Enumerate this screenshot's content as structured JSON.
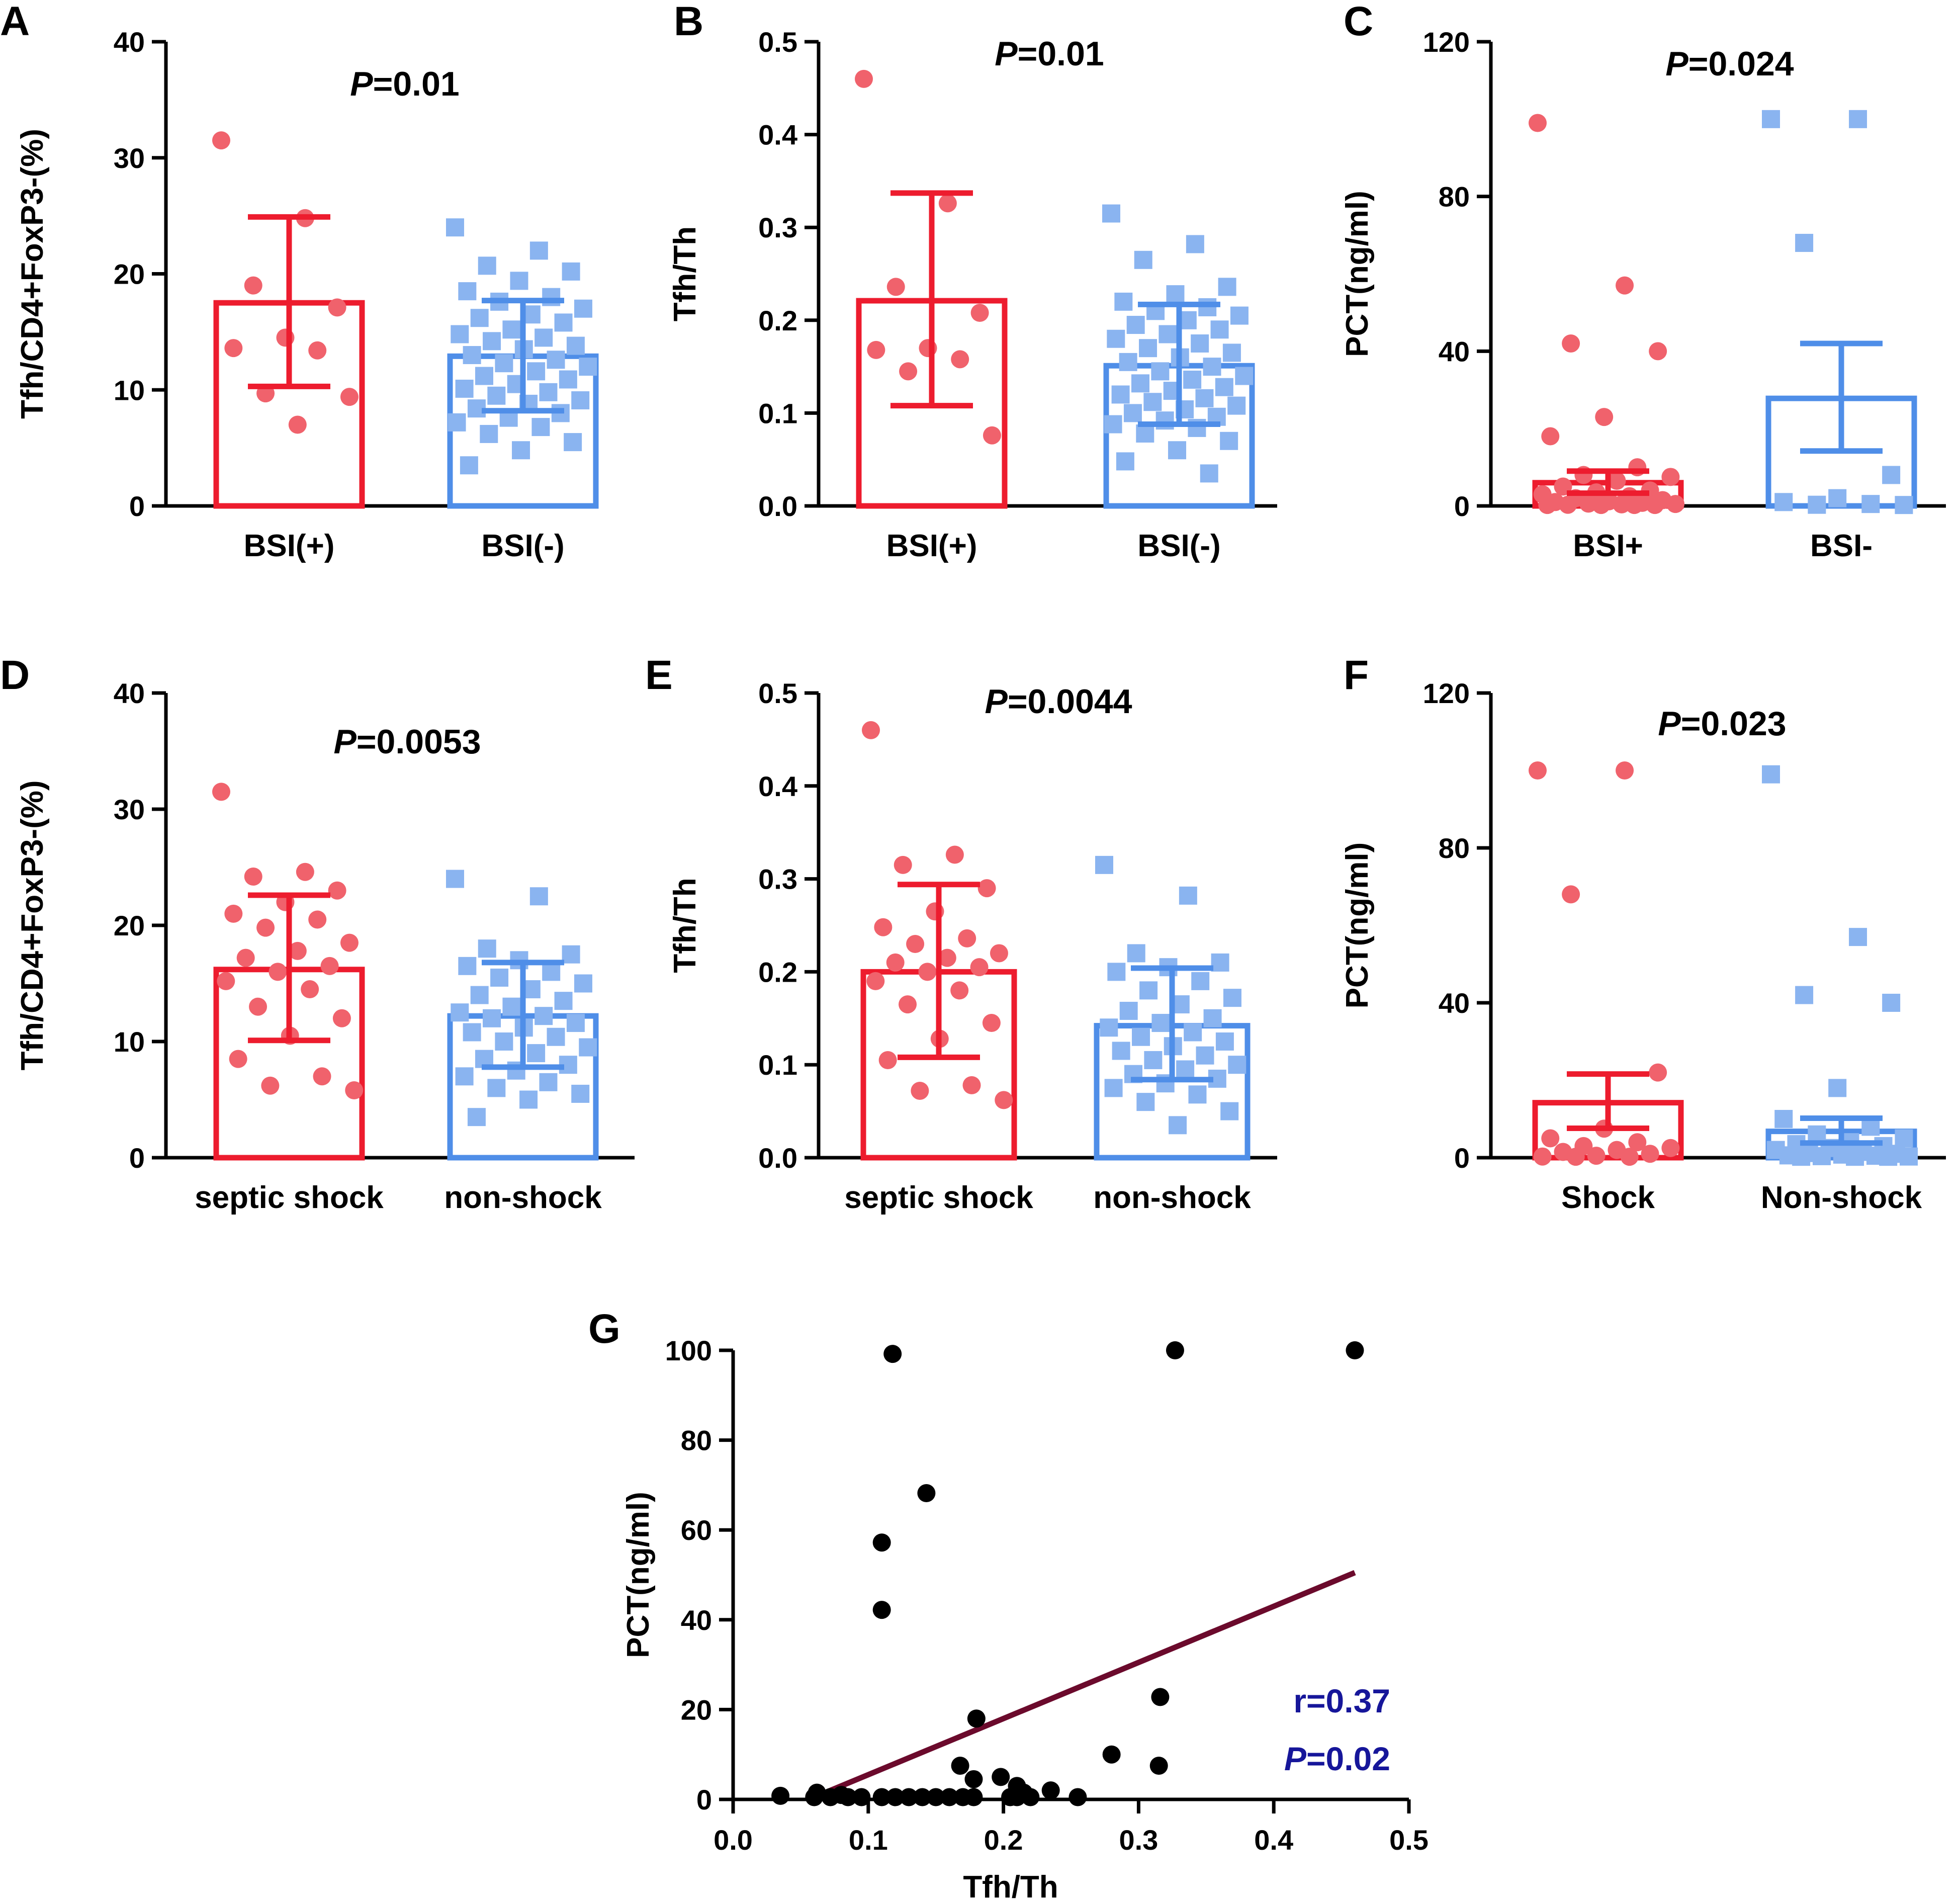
{
  "colors": {
    "red_bar": "#ed1c2e",
    "red_point": "#f0626c",
    "blue_bar": "#4f8ee8",
    "blue_point": "#8ab4f0",
    "black": "#000000",
    "regression_line": "#6b0a2c",
    "stat_blue": "#16169a"
  },
  "chart_data": [
    {
      "panel": "A",
      "type": "bar",
      "ylabel": "Tfh/CD4+FoxP3-(%)",
      "ylim": [
        0,
        40
      ],
      "yticks": [
        0,
        10,
        20,
        30,
        40
      ],
      "p_prefix": "P",
      "p_value": "=0.01",
      "groups": [
        {
          "label": "BSI(+)",
          "color": "red",
          "marker": "circle",
          "mean": 17.5,
          "err_low": 10.3,
          "err_high": 24.9,
          "points": [
            31.5,
            24.8,
            19.0,
            17.1,
            14.5,
            13.6,
            13.4,
            9.7,
            9.4,
            7.0
          ]
        },
        {
          "label": "BSI(-)",
          "color": "blue",
          "marker": "square",
          "mean": 12.9,
          "err_low": 8.2,
          "err_high": 17.7,
          "points": [
            24.0,
            22.0,
            20.7,
            20.2,
            19.4,
            18.5,
            18.0,
            17.6,
            17.0,
            16.5,
            16.2,
            15.8,
            15.2,
            14.8,
            14.5,
            14.2,
            13.8,
            13.5,
            13.0,
            12.6,
            12.3,
            12.0,
            11.6,
            11.2,
            10.9,
            10.5,
            10.1,
            9.8,
            9.5,
            9.1,
            8.8,
            8.4,
            8.0,
            7.6,
            7.2,
            6.8,
            6.2,
            5.5,
            4.8,
            3.5
          ]
        }
      ]
    },
    {
      "panel": "B",
      "type": "bar",
      "ylabel": "Tfh/Th",
      "ylim": [
        0,
        0.5
      ],
      "yticks": [
        "0.0",
        "0.1",
        "0.2",
        "0.3",
        "0.4",
        "0.5"
      ],
      "p_prefix": "P",
      "p_value": "=0.01",
      "groups": [
        {
          "label": "BSI(+)",
          "color": "red",
          "marker": "circle",
          "mean": 0.221,
          "err_low": 0.108,
          "err_high": 0.337,
          "points": [
            0.46,
            0.326,
            0.236,
            0.208,
            0.17,
            0.168,
            0.158,
            0.145,
            0.076
          ]
        },
        {
          "label": "BSI(-)",
          "color": "blue",
          "marker": "square",
          "mean": 0.151,
          "err_low": 0.088,
          "err_high": 0.217,
          "points": [
            0.315,
            0.282,
            0.265,
            0.236,
            0.228,
            0.22,
            0.214,
            0.21,
            0.205,
            0.2,
            0.195,
            0.19,
            0.185,
            0.18,
            0.175,
            0.17,
            0.165,
            0.16,
            0.155,
            0.15,
            0.145,
            0.14,
            0.136,
            0.132,
            0.128,
            0.124,
            0.12,
            0.116,
            0.112,
            0.108,
            0.104,
            0.1,
            0.096,
            0.092,
            0.088,
            0.084,
            0.078,
            0.07,
            0.06,
            0.048,
            0.035
          ]
        }
      ]
    },
    {
      "panel": "C",
      "type": "bar",
      "ylabel": "PCT(ng/ml)",
      "ylim": [
        0,
        120
      ],
      "yticks": [
        0,
        40,
        80,
        120
      ],
      "p_prefix": "P",
      "p_value": "=0.024",
      "groups": [
        {
          "label": "BSI+",
          "color": "red",
          "marker": "circle",
          "mean": 6.0,
          "err_low": 3.3,
          "err_high": 9.0,
          "points": [
            99,
            57,
            42,
            40,
            23,
            18,
            10,
            8,
            7.5,
            6.5,
            5,
            4,
            3.5,
            3,
            2.5,
            2,
            1.5,
            1.2,
            1,
            0.8,
            0.6,
            0.5,
            0.4,
            0.3,
            0.2,
            0.1,
            0.1,
            0.1
          ]
        },
        {
          "label": "BSI-",
          "color": "blue",
          "marker": "square",
          "mean": 27.8,
          "err_low": 14.2,
          "err_high": 42.0,
          "points": [
            100,
            100,
            68,
            8,
            2,
            1,
            0.5,
            0.3,
            0.2
          ]
        }
      ]
    },
    {
      "panel": "D",
      "type": "bar",
      "ylabel": "Tfh/CD4+FoxP3-(%)",
      "ylim": [
        0,
        40
      ],
      "yticks": [
        0,
        10,
        20,
        30,
        40
      ],
      "p_prefix": "P",
      "p_value": "=0.0053",
      "groups": [
        {
          "label": "septic shock",
          "color": "red",
          "marker": "circle",
          "mean": 16.2,
          "err_low": 10.1,
          "err_high": 22.6,
          "points": [
            31.5,
            24.6,
            24.2,
            23.0,
            22.0,
            21.0,
            20.5,
            19.8,
            18.5,
            17.8,
            17.2,
            16.5,
            16.0,
            15.2,
            14.5,
            13.0,
            12.0,
            10.5,
            8.5,
            7.0,
            6.2,
            5.8
          ]
        },
        {
          "label": "non-shock",
          "color": "blue",
          "marker": "square",
          "mean": 12.2,
          "err_low": 7.8,
          "err_high": 16.8,
          "points": [
            24.0,
            22.5,
            18.0,
            17.5,
            17.0,
            16.5,
            16.0,
            15.5,
            15.0,
            14.5,
            14.0,
            13.5,
            13.0,
            12.5,
            12.2,
            12.0,
            11.6,
            11.2,
            10.8,
            10.4,
            10.0,
            9.5,
            9.0,
            8.5,
            8.0,
            7.5,
            7.0,
            6.5,
            6.0,
            5.5,
            5.0,
            3.5
          ]
        }
      ]
    },
    {
      "panel": "E",
      "type": "bar",
      "ylabel": "Tfh/Th",
      "ylim": [
        0,
        0.5
      ],
      "yticks": [
        "0.0",
        "0.1",
        "0.2",
        "0.3",
        "0.4",
        "0.5"
      ],
      "p_prefix": "P",
      "p_value": "=0.0044",
      "groups": [
        {
          "label": "septic shock",
          "color": "red",
          "marker": "circle",
          "mean": 0.2,
          "err_low": 0.108,
          "err_high": 0.294,
          "points": [
            0.46,
            0.326,
            0.315,
            0.29,
            0.265,
            0.248,
            0.236,
            0.23,
            0.22,
            0.215,
            0.21,
            0.205,
            0.2,
            0.19,
            0.18,
            0.165,
            0.145,
            0.128,
            0.105,
            0.078,
            0.072,
            0.062
          ]
        },
        {
          "label": "non-shock",
          "color": "blue",
          "marker": "square",
          "mean": 0.142,
          "err_low": 0.084,
          "err_high": 0.204,
          "points": [
            0.315,
            0.282,
            0.22,
            0.21,
            0.205,
            0.2,
            0.19,
            0.18,
            0.172,
            0.165,
            0.158,
            0.15,
            0.145,
            0.14,
            0.135,
            0.13,
            0.125,
            0.12,
            0.115,
            0.11,
            0.105,
            0.1,
            0.095,
            0.09,
            0.085,
            0.08,
            0.075,
            0.068,
            0.06,
            0.05,
            0.035
          ]
        }
      ]
    },
    {
      "panel": "F",
      "type": "bar",
      "ylabel": "PCT(ng/ml)",
      "ylim": [
        0,
        120
      ],
      "yticks": [
        0,
        40,
        80,
        120
      ],
      "p_prefix": "P",
      "p_value": "=0.023",
      "groups": [
        {
          "label": "Shock",
          "color": "red",
          "marker": "circle",
          "mean": 14.2,
          "err_low": 7.6,
          "err_high": 21.6,
          "points": [
            100,
            100,
            68,
            22,
            7.5,
            5,
            4,
            3,
            2.5,
            2,
            1.5,
            1,
            0.5,
            0.3,
            0.2,
            0.1
          ]
        },
        {
          "label": "Non-shock",
          "color": "blue",
          "marker": "square",
          "mean": 6.8,
          "err_low": 3.8,
          "err_high": 10.2,
          "points": [
            99,
            57,
            42,
            40,
            18,
            10,
            8,
            6,
            5,
            4,
            3.5,
            3,
            2.5,
            2,
            1.5,
            1.2,
            1,
            0.8,
            0.6,
            0.5,
            0.4,
            0.3,
            0.2,
            0.1,
            0.1
          ]
        }
      ]
    },
    {
      "panel": "G",
      "type": "scatter",
      "xlabel": "Tfh/Th",
      "ylabel": "PCT(ng/ml)",
      "xlim": [
        0,
        0.5
      ],
      "ylim": [
        0,
        100
      ],
      "xticks": [
        "0.0",
        "0.1",
        "0.2",
        "0.3",
        "0.4",
        "0.5"
      ],
      "yticks": [
        0,
        20,
        40,
        60,
        80,
        100
      ],
      "r_text": "r=0.37",
      "p_prefix": "P",
      "p_value": "=0.02",
      "regression": {
        "x0": 0.068,
        "y0": 1.5,
        "x1": 0.46,
        "y1": 50.5
      },
      "points": [
        [
          0.118,
          99.2
        ],
        [
          0.327,
          100
        ],
        [
          0.46,
          100
        ],
        [
          0.143,
          68.2
        ],
        [
          0.11,
          57.2
        ],
        [
          0.11,
          42.2
        ],
        [
          0.316,
          22.8
        ],
        [
          0.18,
          18.0
        ],
        [
          0.28,
          10.0
        ],
        [
          0.168,
          7.5
        ],
        [
          0.315,
          7.5
        ],
        [
          0.198,
          5.0
        ],
        [
          0.178,
          4.5
        ],
        [
          0.21,
          3.0
        ],
        [
          0.235,
          2.0
        ],
        [
          0.215,
          1.5
        ],
        [
          0.062,
          1.5
        ],
        [
          0.035,
          0.8
        ],
        [
          0.06,
          0.5
        ],
        [
          0.072,
          0.5
        ],
        [
          0.08,
          1.0
        ],
        [
          0.085,
          0.5
        ],
        [
          0.095,
          0.5
        ],
        [
          0.11,
          0.5
        ],
        [
          0.12,
          0.5
        ],
        [
          0.13,
          0.5
        ],
        [
          0.14,
          0.5
        ],
        [
          0.15,
          0.5
        ],
        [
          0.16,
          0.5
        ],
        [
          0.17,
          0.5
        ],
        [
          0.178,
          0.5
        ],
        [
          0.205,
          0.5
        ],
        [
          0.21,
          0.5
        ],
        [
          0.22,
          0.5
        ],
        [
          0.255,
          0.5
        ]
      ]
    }
  ]
}
